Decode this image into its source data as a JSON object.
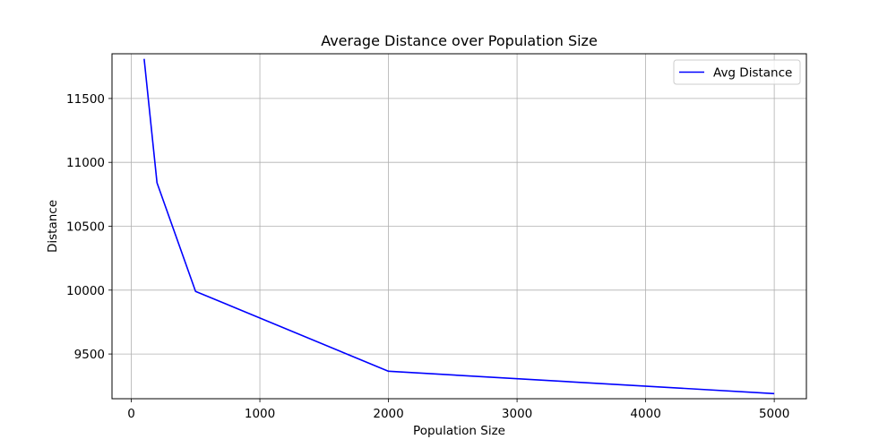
{
  "chart_data": {
    "type": "line",
    "title": "Average Distance over Population Size",
    "xlabel": "Population Size",
    "ylabel": "Distance",
    "xlim": [
      -150,
      5250
    ],
    "ylim": [
      9150,
      11850
    ],
    "xticks": [
      0,
      1000,
      2000,
      3000,
      4000,
      5000
    ],
    "yticks": [
      9500,
      10000,
      10500,
      11000,
      11500
    ],
    "grid": true,
    "legend_position": "top-right",
    "series": [
      {
        "name": "Avg Distance",
        "color": "#0000ff",
        "x": [
          100,
          200,
          500,
          2000,
          5000
        ],
        "y": [
          11810,
          10840,
          9990,
          9365,
          9190
        ]
      }
    ]
  }
}
